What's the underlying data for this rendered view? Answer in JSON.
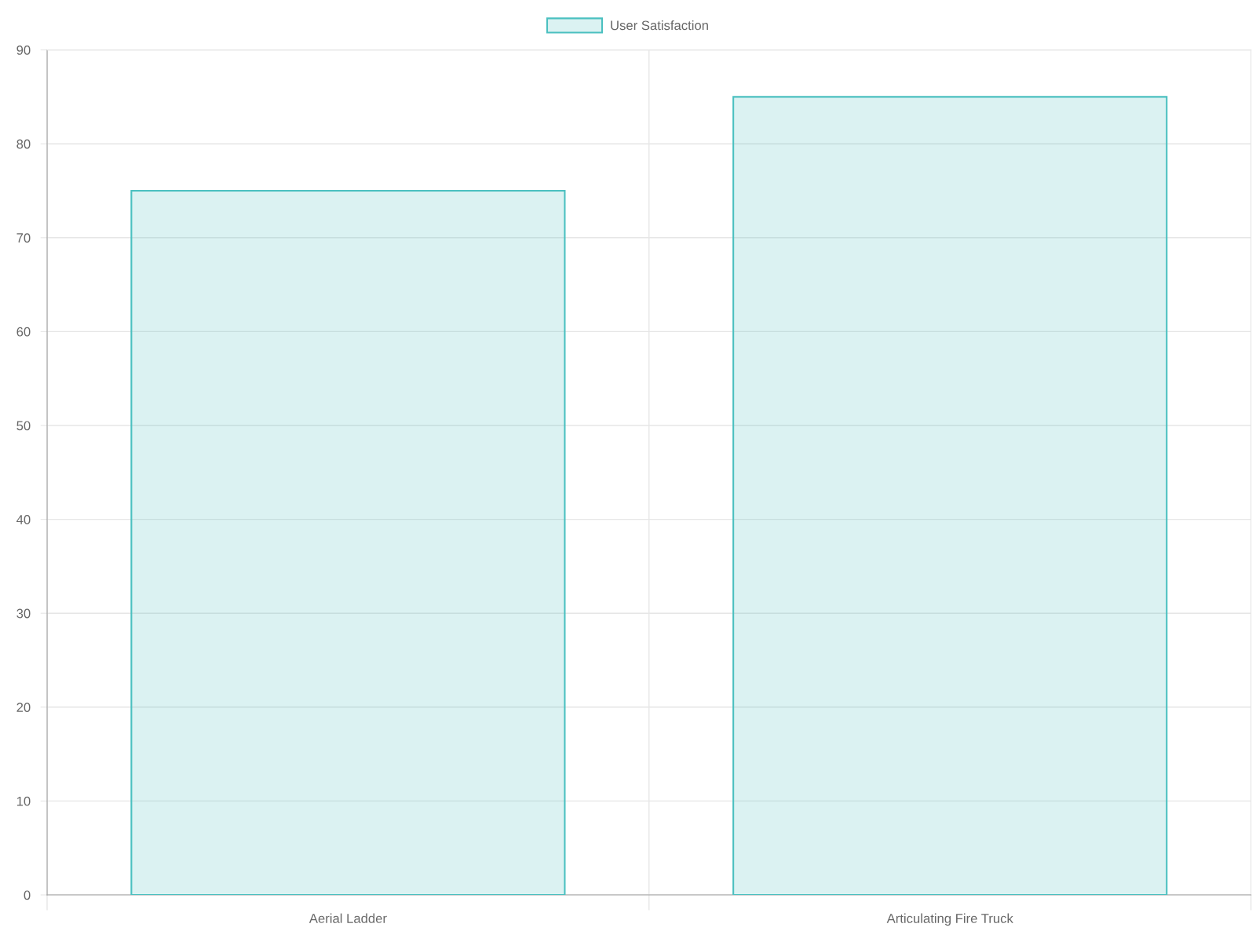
{
  "chart_data": {
    "type": "bar",
    "categories": [
      "Aerial Ladder",
      "Articulating Fire Truck"
    ],
    "series": [
      {
        "name": "User Satisfaction",
        "color": "#4bc0c0",
        "values": [
          75,
          85
        ]
      }
    ],
    "ylim": [
      0,
      90
    ],
    "yticks": [
      0,
      10,
      20,
      30,
      40,
      50,
      60,
      70,
      80,
      90
    ],
    "grid": true,
    "legend": "top"
  }
}
